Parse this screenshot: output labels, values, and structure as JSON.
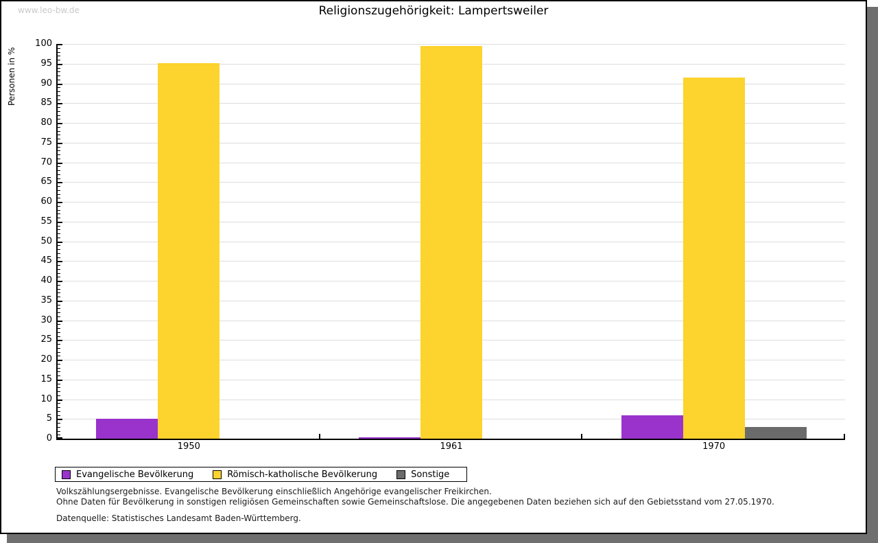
{
  "window": {
    "watermark": "www.leo-bw.de",
    "background": "#ffffff",
    "border_color": "#000000",
    "shadow_color": "#6f6f6f"
  },
  "header": {
    "title": "Religionszugehörigkeit: Lampertsweiler"
  },
  "chart_data": {
    "type": "bar",
    "title": "Religionszugehörigkeit: Lampertsweiler",
    "xlabel": "",
    "ylabel": "Personen in %",
    "ylim": [
      0,
      100
    ],
    "yticks": [
      0,
      5,
      10,
      15,
      20,
      25,
      30,
      35,
      40,
      45,
      50,
      55,
      60,
      65,
      70,
      75,
      80,
      85,
      90,
      95,
      100
    ],
    "minor_tick_step": 1,
    "grid": true,
    "gridline_color": "#dddddd",
    "legend_position": "bottom-left",
    "categories": [
      "1950",
      "1961",
      "1970"
    ],
    "series": [
      {
        "key": "evangelisch",
        "name": "Evangelische Bevölkerung",
        "color": "#9933cc",
        "values": [
          5.0,
          0.4,
          5.9
        ]
      },
      {
        "key": "katholisch",
        "name": "Römisch-katholische Bevölkerung",
        "color": "#fdd32d",
        "values": [
          95.2,
          99.5,
          91.4
        ]
      },
      {
        "key": "sonstige",
        "name": "Sonstige",
        "color": "#6b6b6b",
        "values": [
          0,
          0,
          2.9
        ]
      }
    ]
  },
  "footnotes": {
    "line1": "Volkszählungsergebnisse. Evangelische Bevölkerung einschließlich Angehörige evangelischer Freikirchen.",
    "line2": "Ohne Daten für Bevölkerung in sonstigen religiösen Gemeinschaften sowie Gemeinschaftslose. Die angegebenen Daten beziehen sich auf den Gebietsstand vom 27.05.1970.",
    "source": "Datenquelle: Statistisches Landesamt Baden-Württemberg."
  }
}
